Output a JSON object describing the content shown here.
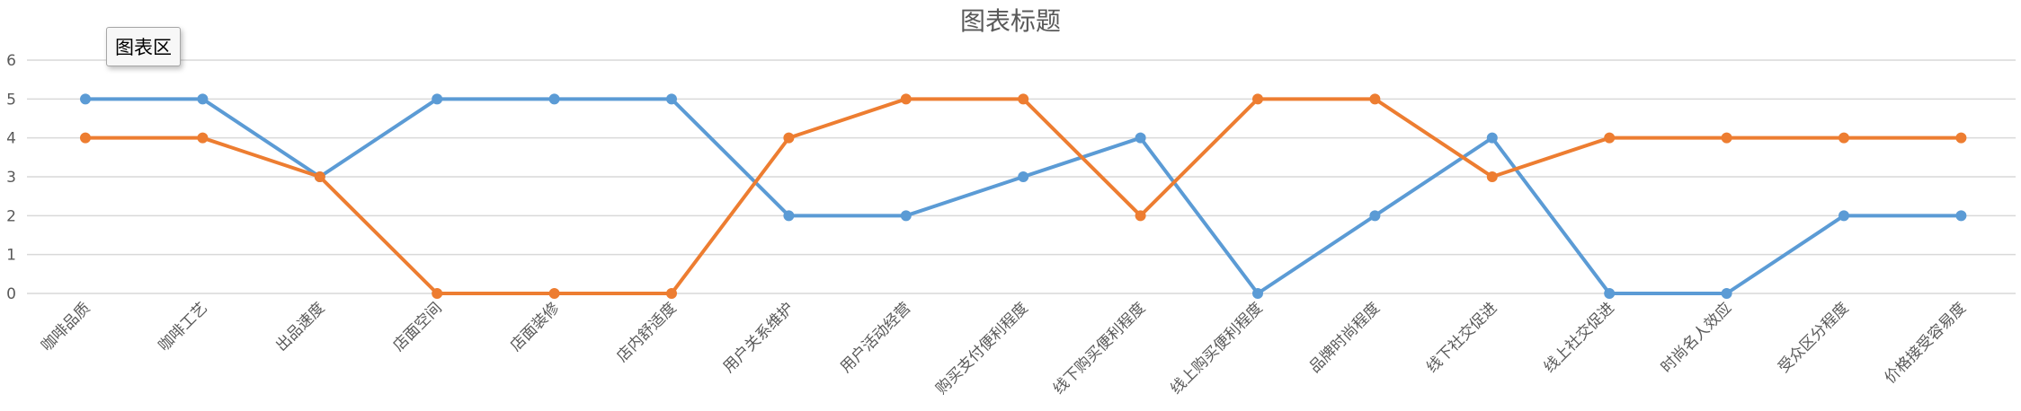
{
  "chart_data": {
    "type": "line",
    "title": "图表标题",
    "tooltip": "图表区",
    "categories": [
      "咖啡品质",
      "咖啡工艺",
      "出品速度",
      "店面空间",
      "店面装修",
      "店内舒适度",
      "用户关系维护",
      "用户活动经营",
      "购买支付便利程度",
      "线下购买便利程度",
      "线上购买便利程度",
      "品牌时尚程度",
      "线下社交促进",
      "线上社交促进",
      "时尚名人效应",
      "受众区分程度",
      "价格接受容易度"
    ],
    "series": [
      {
        "color": "#5B9BD5",
        "values": [
          5,
          5,
          3,
          5,
          5,
          5,
          2,
          2,
          3,
          4,
          0,
          2,
          4,
          0,
          0,
          2,
          2
        ]
      },
      {
        "color": "#ED7D31",
        "values": [
          4,
          4,
          3,
          0,
          0,
          0,
          4,
          5,
          5,
          2,
          5,
          5,
          3,
          4,
          4,
          4,
          4
        ]
      }
    ],
    "ylim": [
      0,
      6
    ],
    "yticks": [
      "0",
      "1",
      "2",
      "3",
      "4",
      "5",
      "6"
    ],
    "grid": true,
    "xlabel": "",
    "ylabel": ""
  }
}
